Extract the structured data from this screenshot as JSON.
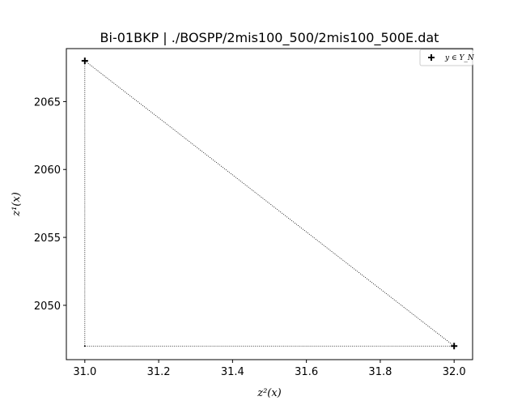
{
  "chart_data": {
    "type": "scatter",
    "title": "Bi-01BKP | ./BOSPP/2mis100_500/2mis100_500E.dat",
    "xlabel": "z²(x)",
    "ylabel": "z¹(x)",
    "xlim": [
      30.95,
      32.05
    ],
    "ylim": [
      2046.0,
      2068.9
    ],
    "xticks": [
      31.0,
      31.2,
      31.4,
      31.6,
      31.8,
      32.0
    ],
    "xtick_labels": [
      "31.0",
      "31.2",
      "31.4",
      "31.6",
      "31.8",
      "32.0"
    ],
    "yticks": [
      2050,
      2055,
      2060,
      2065
    ],
    "ytick_labels": [
      "2050",
      "2055",
      "2060",
      "2065"
    ],
    "grid": false,
    "legend_position": "top-right",
    "series": [
      {
        "name": "y ∈ Y_N",
        "marker": "plus",
        "color": "#000000",
        "points": [
          {
            "x": 31.0,
            "y": 2068.0
          },
          {
            "x": 32.0,
            "y": 2047.0
          }
        ]
      }
    ],
    "guide_lines": {
      "style": "dotted",
      "color": "#000000",
      "corner_point": {
        "x": 31.0,
        "y": 2047.0
      },
      "path": [
        {
          "x": 31.0,
          "y": 2068.0
        },
        {
          "x": 32.0,
          "y": 2047.0
        },
        {
          "x": 31.0,
          "y": 2047.0
        },
        {
          "x": 31.0,
          "y": 2068.0
        }
      ]
    }
  }
}
